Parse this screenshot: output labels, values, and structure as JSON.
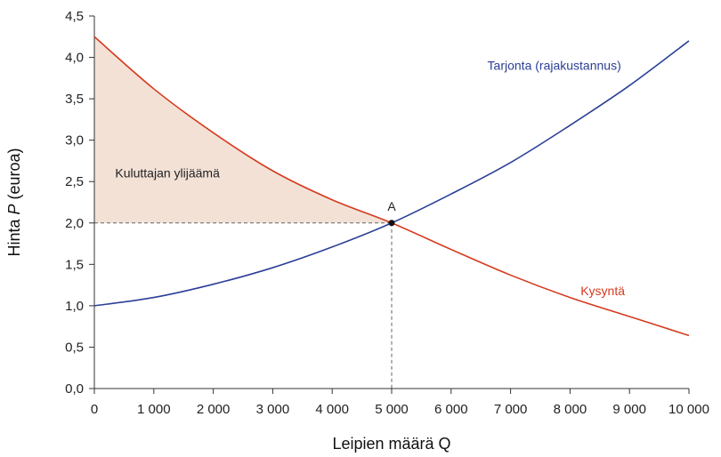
{
  "chart_data": {
    "type": "line",
    "xlabel": "Leipien määrä Q",
    "ylabel_prefix": "Hinta ",
    "ylabel_italic": "P",
    "ylabel_suffix": " (euroa)",
    "xlim": [
      0,
      10000
    ],
    "ylim": [
      0,
      4.5
    ],
    "x_ticks": [
      0,
      1000,
      2000,
      3000,
      4000,
      5000,
      6000,
      7000,
      8000,
      9000,
      10000
    ],
    "x_tick_labels": [
      "0",
      "1 000",
      "2 000",
      "3 000",
      "4 000",
      "5 000",
      "6 000",
      "7 000",
      "8 000",
      "9 000",
      "10 000"
    ],
    "y_ticks": [
      0,
      0.5,
      1,
      1.5,
      2,
      2.5,
      3,
      3.5,
      4,
      4.5
    ],
    "y_tick_labels": [
      "0,0",
      "0,5",
      "1,0",
      "1,5",
      "2,0",
      "2,5",
      "3,0",
      "3,5",
      "4,0",
      "4,5"
    ],
    "series": [
      {
        "name": "Tarjonta (rajakustannus)",
        "color": "#2b3f96",
        "x": [
          0,
          1000,
          2000,
          3000,
          4000,
          5000,
          6000,
          7000,
          8000,
          9000,
          10000
        ],
        "y": [
          1.0,
          1.1,
          1.26,
          1.46,
          1.71,
          2.0,
          2.35,
          2.73,
          3.18,
          3.66,
          4.2
        ]
      },
      {
        "name": "Kysyntä",
        "color": "#d63a1f",
        "x": [
          0,
          1000,
          2000,
          3000,
          4000,
          5000,
          6000,
          7000,
          8000,
          9000,
          10000
        ],
        "y": [
          4.25,
          3.62,
          3.09,
          2.63,
          2.28,
          2.0,
          1.68,
          1.37,
          1.1,
          0.87,
          0.64
        ]
      }
    ],
    "equilibrium": {
      "label": "A",
      "x": 5000,
      "y": 2.0
    },
    "shaded_area": {
      "label": "Kuluttajan ylijäämä",
      "color": "#f3e1d6"
    },
    "grid": false,
    "colors": {
      "axis": "#333333",
      "guide": "#666666",
      "point": "#111111"
    }
  }
}
